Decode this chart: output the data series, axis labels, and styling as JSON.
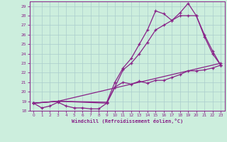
{
  "xlabel": "Windchill (Refroidissement éolien,°C)",
  "bg_color": "#cceedd",
  "grid_color": "#aacccc",
  "line_color": "#882288",
  "xlim": [
    -0.5,
    23.5
  ],
  "ylim": [
    18,
    29.5
  ],
  "xticks": [
    0,
    1,
    2,
    3,
    4,
    5,
    6,
    7,
    8,
    9,
    10,
    11,
    12,
    13,
    14,
    15,
    16,
    17,
    18,
    19,
    20,
    21,
    22,
    23
  ],
  "yticks": [
    18,
    19,
    20,
    21,
    22,
    23,
    24,
    25,
    26,
    27,
    28,
    29
  ],
  "curves": [
    {
      "x": [
        0,
        1,
        2,
        3,
        4,
        5,
        6,
        7,
        8,
        9,
        10,
        11,
        12,
        13,
        14,
        15,
        16,
        17,
        18,
        19,
        20,
        21,
        22,
        23
      ],
      "y": [
        18.8,
        18.3,
        18.5,
        18.9,
        18.5,
        18.3,
        18.3,
        18.2,
        18.2,
        18.8,
        20.5,
        21.0,
        20.8,
        21.1,
        20.9,
        21.2,
        21.2,
        21.5,
        21.8,
        22.2,
        22.2,
        22.3,
        22.5,
        22.8
      ]
    },
    {
      "x": [
        0,
        3,
        9,
        10,
        11,
        12,
        13,
        14,
        15,
        16,
        17,
        18,
        19,
        20,
        21,
        22,
        23
      ],
      "y": [
        18.8,
        19.0,
        18.8,
        20.5,
        22.3,
        23.0,
        24.0,
        25.2,
        26.5,
        27.0,
        27.5,
        28.0,
        28.0,
        28.0,
        25.8,
        24.0,
        22.8
      ]
    },
    {
      "x": [
        0,
        3,
        9,
        10,
        11,
        12,
        13,
        14,
        15,
        16,
        17,
        18,
        19,
        20,
        21,
        22,
        23
      ],
      "y": [
        18.8,
        19.0,
        18.9,
        21.0,
        22.5,
        23.5,
        25.0,
        26.5,
        28.5,
        28.2,
        27.5,
        28.3,
        29.3,
        28.0,
        26.0,
        24.3,
        22.8
      ]
    },
    {
      "x": [
        0,
        3,
        23
      ],
      "y": [
        18.8,
        19.0,
        23.0
      ]
    }
  ]
}
